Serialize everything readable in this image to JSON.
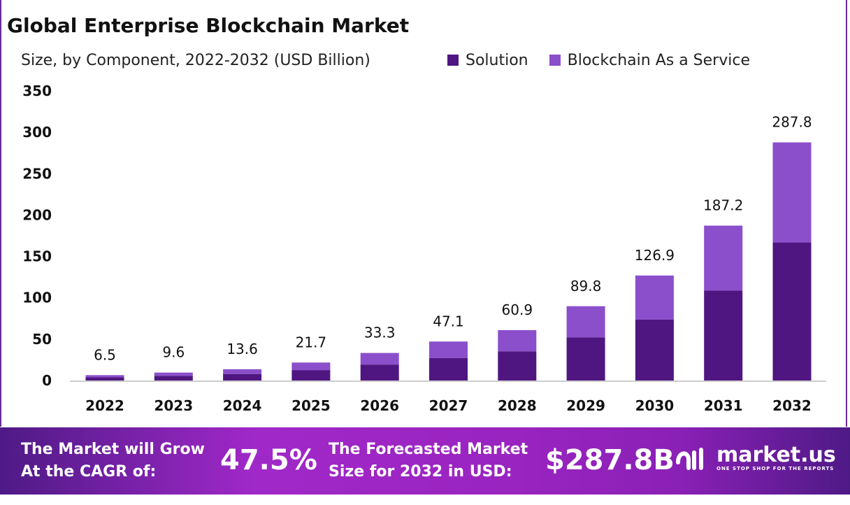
{
  "chart_data": {
    "type": "bar",
    "stacked": true,
    "title": "Global Enterprise Blockchain Market",
    "subtitle": "Size, by Component, 2022-2032 (USD Billion)",
    "categories": [
      "2022",
      "2023",
      "2024",
      "2025",
      "2026",
      "2027",
      "2028",
      "2029",
      "2030",
      "2031",
      "2032"
    ],
    "series": [
      {
        "name": "Solution",
        "color": "#4f1681",
        "values": [
          3.8,
          5.6,
          7.9,
          12.6,
          19.3,
          27.3,
          35.3,
          52.1,
          73.6,
          108.6,
          166.9
        ]
      },
      {
        "name": "Blockchain As a Service",
        "color": "#8b4fcb",
        "values": [
          2.7,
          4.0,
          5.7,
          9.1,
          14.0,
          19.8,
          25.6,
          37.7,
          53.3,
          78.6,
          120.9
        ]
      }
    ],
    "totals": [
      "6.5",
      "9.6",
      "13.6",
      "21.7",
      "33.3",
      "47.1",
      "60.9",
      "89.8",
      "126.9",
      "187.2",
      "287.8"
    ],
    "ylim": [
      0,
      350
    ],
    "yticks": [
      "0",
      "50",
      "100",
      "150",
      "200",
      "250",
      "300",
      "350"
    ],
    "grid": false,
    "legend_position": "top-right"
  },
  "footer": {
    "cagr_label_1": "The Market will Grow",
    "cagr_label_2": "At the CAGR of:",
    "cagr_value": "47.5%",
    "forecast_label_1": "The Forecasted Market",
    "forecast_label_2": "Size for 2032 in USD:",
    "forecast_value": "$287.8B",
    "logo_name": "market.us",
    "logo_tagline": "ONE STOP SHOP FOR THE REPORTS"
  }
}
